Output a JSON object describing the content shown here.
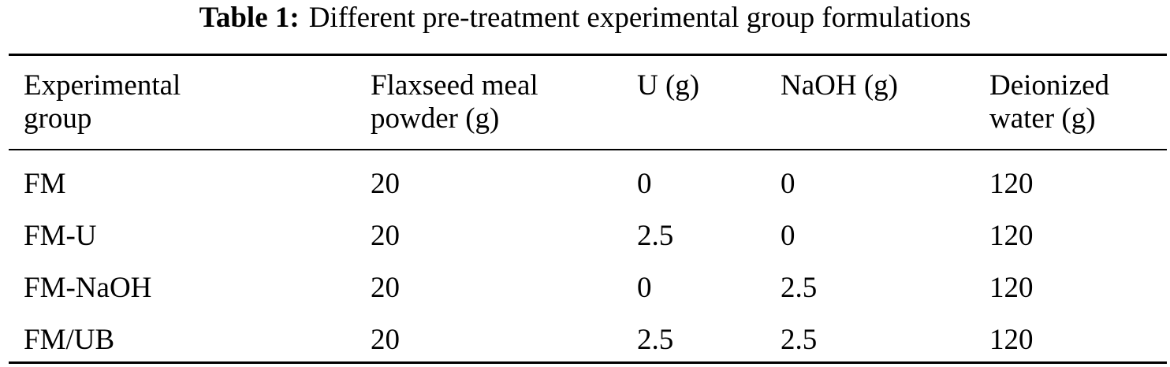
{
  "caption": {
    "label": "Table 1:",
    "text": "Different pre-treatment experimental group formulations"
  },
  "table": {
    "headers": [
      [
        "Experimental",
        "group"
      ],
      [
        "Flaxseed meal",
        "powder (g)"
      ],
      [
        "U (g)"
      ],
      [
        "NaOH (g)"
      ],
      [
        "Deionized",
        "water (g)"
      ]
    ],
    "rows": [
      [
        "FM",
        "20",
        "0",
        "0",
        "120"
      ],
      [
        "FM-U",
        "20",
        "2.5",
        "0",
        "120"
      ],
      [
        "FM-NaOH",
        "20",
        "0",
        "2.5",
        "120"
      ],
      [
        "FM/UB",
        "20",
        "2.5",
        "2.5",
        "120"
      ]
    ]
  }
}
